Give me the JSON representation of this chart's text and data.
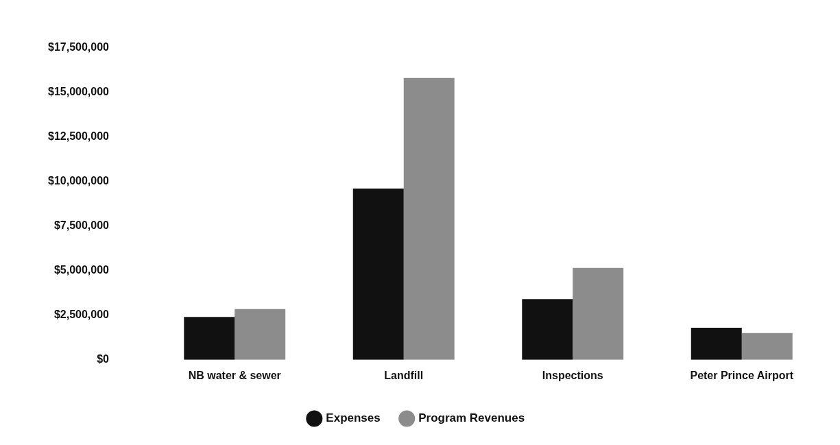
{
  "chart_data": {
    "type": "bar",
    "categories": [
      "NB water & sewer",
      "Landfill",
      "Inspections",
      "Peter Prince Airport"
    ],
    "series": [
      {
        "name": "Expenses",
        "color": "#111111",
        "values": [
          2400000,
          9600000,
          3400000,
          1800000
        ]
      },
      {
        "name": "Program Revenues",
        "color": "#8c8c8c",
        "values": [
          2850000,
          15800000,
          5150000,
          1500000
        ]
      }
    ],
    "ylim": [
      0,
      17500000
    ],
    "yticks": [
      {
        "value": 0,
        "label": "$0"
      },
      {
        "value": 2500000,
        "label": "$2,500,000"
      },
      {
        "value": 5000000,
        "label": "$5,000,000"
      },
      {
        "value": 7500000,
        "label": "$7,500,000"
      },
      {
        "value": 10000000,
        "label": "$10,000,000"
      },
      {
        "value": 12500000,
        "label": "$12,500,000"
      },
      {
        "value": 15000000,
        "label": "$15,000,000"
      },
      {
        "value": 17500000,
        "label": "$17,500,000"
      }
    ],
    "grid": false,
    "legend": "bottom"
  }
}
